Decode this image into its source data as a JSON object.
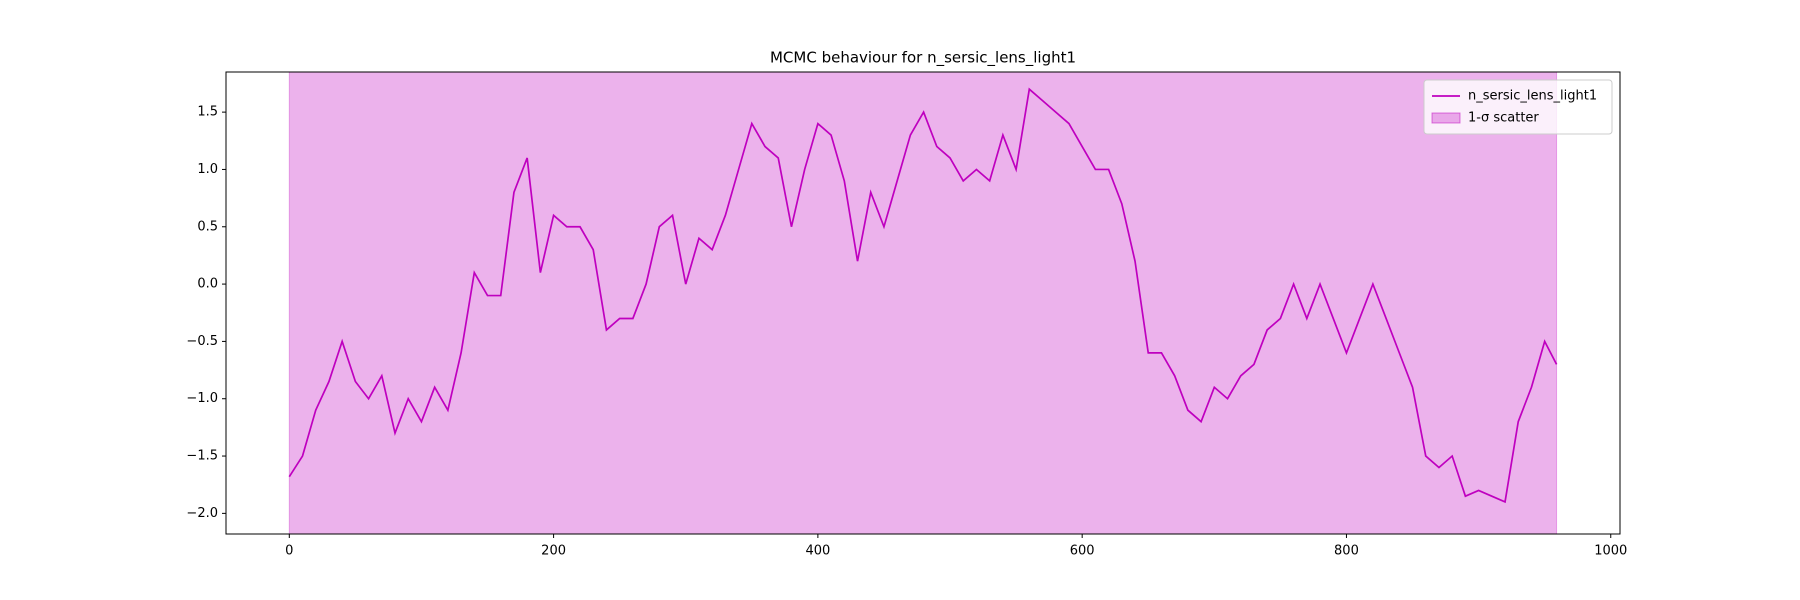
{
  "chart_data": {
    "type": "line",
    "title": "MCMC behaviour for n_sersic_lens_light1",
    "x": [
      0,
      10,
      20,
      30,
      40,
      50,
      60,
      70,
      80,
      90,
      100,
      110,
      120,
      130,
      140,
      150,
      160,
      170,
      180,
      190,
      200,
      210,
      220,
      230,
      240,
      250,
      260,
      270,
      280,
      290,
      300,
      310,
      320,
      330,
      340,
      350,
      360,
      370,
      380,
      390,
      400,
      410,
      420,
      430,
      440,
      450,
      460,
      470,
      480,
      490,
      500,
      510,
      520,
      530,
      540,
      550,
      560,
      570,
      580,
      590,
      600,
      610,
      620,
      630,
      640,
      650,
      660,
      670,
      680,
      690,
      700,
      710,
      720,
      730,
      740,
      750,
      760,
      770,
      780,
      790,
      800,
      810,
      820,
      830,
      840,
      850,
      860,
      870,
      880,
      890,
      900,
      910,
      920,
      930,
      940,
      950,
      959
    ],
    "series": [
      {
        "name": "n_sersic_lens_light1",
        "color": "#bf00bf",
        "values": [
          -1.68,
          -1.5,
          -1.1,
          -0.85,
          -0.5,
          -0.85,
          -1.0,
          -0.8,
          -1.3,
          -1.0,
          -1.2,
          -0.9,
          -1.1,
          -0.6,
          0.1,
          -0.1,
          -0.1,
          0.8,
          1.1,
          0.1,
          0.6,
          0.5,
          0.5,
          0.3,
          -0.4,
          -0.3,
          -0.3,
          0.0,
          0.5,
          0.6,
          0.0,
          0.4,
          0.3,
          0.6,
          1.0,
          1.4,
          1.2,
          1.1,
          0.5,
          1.0,
          1.4,
          1.3,
          0.9,
          0.2,
          0.8,
          0.5,
          0.9,
          1.3,
          1.5,
          1.2,
          1.1,
          0.9,
          1.0,
          0.9,
          1.3,
          1.0,
          1.7,
          1.6,
          1.5,
          1.4,
          1.2,
          1.0,
          1.0,
          0.7,
          0.2,
          -0.6,
          -0.6,
          -0.8,
          -1.1,
          -1.2,
          -0.9,
          -1.0,
          -0.8,
          -0.7,
          -0.4,
          -0.3,
          0.0,
          -0.3,
          0.0,
          -0.3,
          -0.6,
          -0.3,
          0.0,
          -0.3,
          -0.6,
          -0.9,
          -1.5,
          -1.6,
          -1.5,
          -1.85,
          -1.8,
          -1.85,
          -1.9,
          -1.2,
          -0.9,
          -0.5,
          -0.7
        ]
      }
    ],
    "band": {
      "name": "1-σ scatter",
      "color": "#bf00bf",
      "x": [
        0,
        959
      ],
      "lower": [
        -2.5,
        -2.5
      ],
      "upper": [
        2.2,
        2.2
      ]
    },
    "xlim": [
      -47.9,
      1007
    ],
    "ylim": [
      -2.18,
      1.85
    ],
    "xticks": [
      0,
      200,
      400,
      600,
      800,
      1000
    ],
    "yticks": [
      {
        "value": -2.0,
        "label": "−2.0"
      },
      {
        "value": -1.5,
        "label": "−1.5"
      },
      {
        "value": -1.0,
        "label": "−1.0"
      },
      {
        "value": -0.5,
        "label": "−0.5"
      },
      {
        "value": 0.0,
        "label": "0.0"
      },
      {
        "value": 0.5,
        "label": "0.5"
      },
      {
        "value": 1.0,
        "label": "1.0"
      },
      {
        "value": 1.5,
        "label": "1.5"
      }
    ],
    "legend": "upper right"
  }
}
